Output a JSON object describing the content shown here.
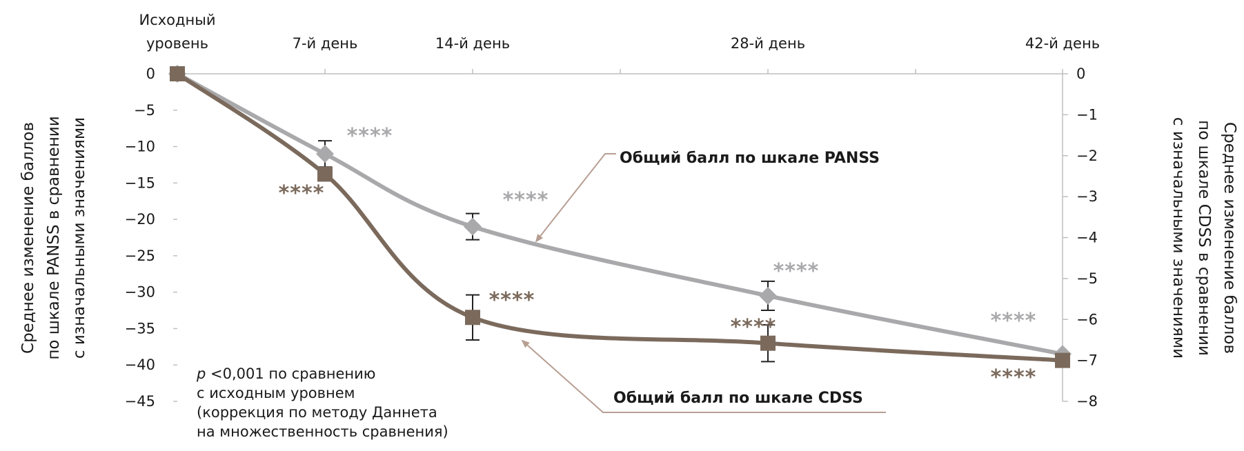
{
  "chart_data": {
    "type": "line",
    "x_labels": [
      [
        "Исходный",
        "уровень"
      ],
      [
        "7-й день"
      ],
      [
        "14-й день"
      ],
      [
        "28-й день"
      ],
      [
        "42-й день"
      ]
    ],
    "x": [
      0,
      7,
      14,
      28,
      42
    ],
    "left_axis": {
      "label_lines": [
        "Среднее изменение баллов",
        "по шкале PANSS в сравнении",
        "с изначальными значениями"
      ],
      "ticks": [
        "0",
        "−5",
        "−10",
        "−15",
        "−20",
        "−25",
        "−30",
        "−35",
        "−40",
        "−45"
      ],
      "ylim": [
        -45,
        0
      ],
      "step": 5
    },
    "right_axis": {
      "label_lines": [
        "Среднее изменение баллов",
        "по шкале CDSS в сравнении",
        "с изначальными значениями"
      ],
      "ticks": [
        "0",
        "−1",
        "−2",
        "−3",
        "−4",
        "−5",
        "−6",
        "−7",
        "−8"
      ],
      "ylim": [
        -8,
        0
      ],
      "step": 1
    },
    "series": [
      {
        "name": "Общий балл по шкале PANSS",
        "axis": "left",
        "marker": "diamond",
        "color": "#a9a9ab",
        "values": [
          0,
          -11,
          -21,
          -30.5,
          -38.5
        ],
        "err": [
          0,
          1.8,
          1.8,
          2,
          0
        ],
        "significance": [
          "",
          "****",
          "****",
          "****",
          "****"
        ]
      },
      {
        "name": "Общий балл по шкале CDSS",
        "axis": "right",
        "marker": "square",
        "color": "#7b6a5c",
        "values": [
          0,
          -2.45,
          -5.95,
          -6.58,
          -7.0
        ],
        "err": [
          0,
          0,
          0.55,
          0.45,
          0
        ],
        "significance": [
          "",
          "****",
          "****",
          "****",
          "****"
        ]
      }
    ],
    "note_lines": [
      "<0,001 по сравнению",
      "с исходным уровнем",
      "(коррекция по методу Даннета",
      "на множественность сравнения)"
    ],
    "note_p": "p",
    "grid": false,
    "colors": {
      "panss": "#a9a9ab",
      "cdss": "#7b6a5c",
      "arrow": "#b79e92",
      "axis": "#bfbfbf"
    }
  }
}
